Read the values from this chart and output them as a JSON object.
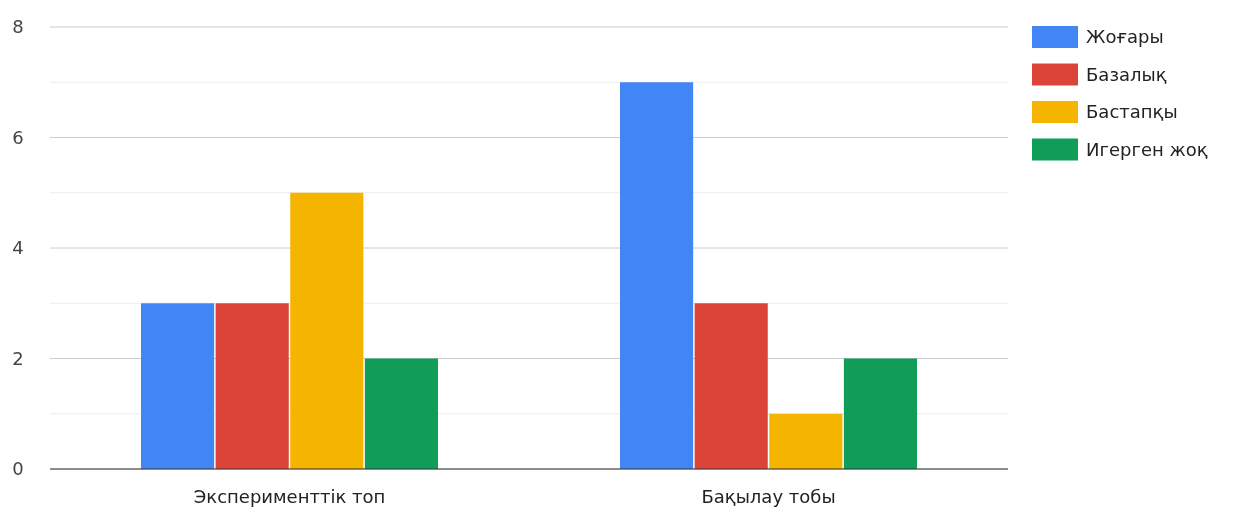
{
  "chart_data": {
    "type": "bar",
    "categories": [
      "Эксперименттік топ",
      "Бақылау тобы"
    ],
    "series": [
      {
        "name": "Жоғары",
        "color": "#4285f4",
        "values": [
          3,
          7
        ]
      },
      {
        "name": "Базалық",
        "color": "#db4437",
        "values": [
          3,
          3
        ]
      },
      {
        "name": "Бастапқы",
        "color": "#f4b400",
        "values": [
          5,
          1
        ]
      },
      {
        "name": "Игерген жоқ",
        "color": "#0f9d58",
        "values": [
          2,
          2
        ]
      }
    ],
    "ylim": [
      0,
      8
    ],
    "yticks": [
      0,
      {
        "value": 1,
        "label": null
      },
      2,
      {
        "value": 3,
        "label": null
      },
      4,
      {
        "value": 5,
        "label": null
      },
      6,
      {
        "value": 7,
        "label": null
      },
      8
    ],
    "grid": "y",
    "legend": "top right"
  }
}
